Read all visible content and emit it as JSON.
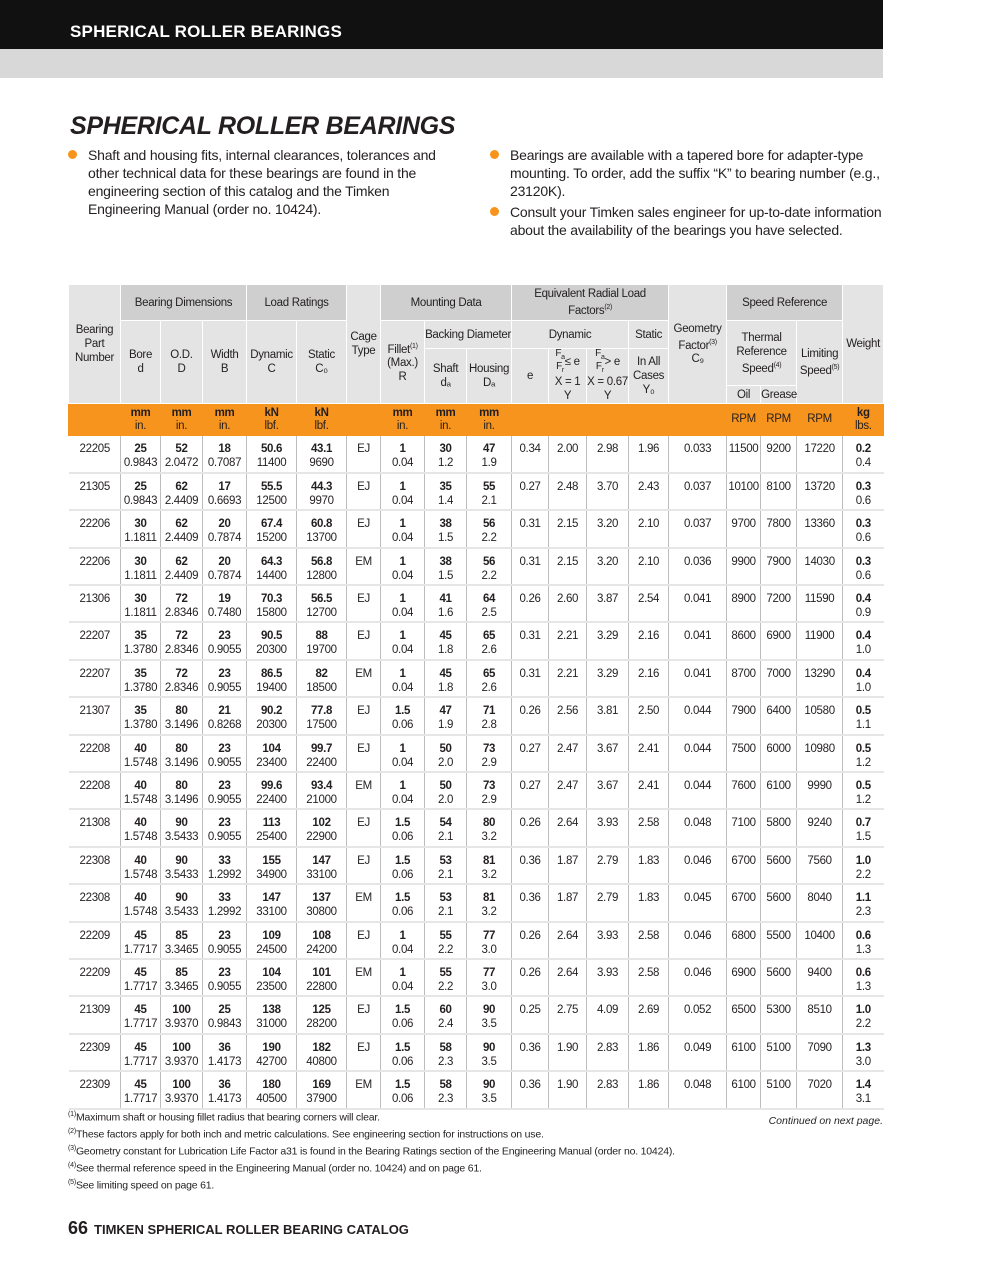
{
  "header": {
    "section": "SPHERICAL ROLLER BEARINGS"
  },
  "title": "SPHERICAL ROLLER BEARINGS",
  "bullets_left": [
    "Shaft and housing fits, internal clearances, tolerances and other technical data for these bearings are found in the engineering section of this catalog and the Timken Engineering Manual (order no. 10424)."
  ],
  "bullets_right": [
    "Bearings are available with a tapered bore for adapter-type mounting. To order, add the suffix “K” to bearing number (e.g., 23120K).",
    "Consult your Timken sales engineer for up-to-date information about the availability of the bearings you have selected."
  ],
  "accent_color": "#f7941d",
  "table": {
    "groups": {
      "dims": "Bearing Dimensions",
      "load": "Load Ratings",
      "mount": "Mounting Data",
      "eq": "Equivalent Radial Load Factors",
      "speed": "Speed Reference"
    },
    "cols": {
      "part": "Bearing Part Number",
      "bore": "Bore",
      "bore_sym": "d",
      "od": "O.D.",
      "od_sym": "D",
      "width": "Width",
      "width_sym": "B",
      "dyn": "Dynamic",
      "dyn_sym": "C",
      "stat": "Static",
      "stat_sym": "C₀",
      "cage": "Cage Type",
      "fillet": "Fillet",
      "fillet_sub": "(Max.)",
      "fillet_sym": "R",
      "backing": "Backing Diameter",
      "shaft": "Shaft",
      "shaft_sym": "dₐ",
      "housing": "Housing",
      "housing_sym": "Dₐ",
      "dynamic": "Dynamic",
      "static": "Static",
      "e": "e",
      "y1": "≤ e",
      "y1_x": "X = 1",
      "y1_y": "Y",
      "y2": "> e",
      "y2_x": "X = 0.67",
      "y2_y": "Y",
      "y0": "In All Cases",
      "y0_sym": "Y₀",
      "geom": "Geometry Factor",
      "geom_sym": "C₉",
      "thermal": "Thermal Reference Speed",
      "oil": "Oil",
      "grease": "Grease",
      "limit": "Limiting Speed",
      "weight": "Weight"
    },
    "units": {
      "mm": "mm",
      "in": "in.",
      "kn": "kN",
      "lbf": "lbf.",
      "rpm": "RPM",
      "kg": "kg",
      "lbs": "lbs."
    },
    "rows": [
      [
        "22205",
        "25",
        "0.9843",
        "52",
        "2.0472",
        "18",
        "0.7087",
        "50.6",
        "11400",
        "43.1",
        "9690",
        "EJ",
        "1",
        "0.04",
        "30",
        "1.2",
        "47",
        "1.9",
        "0.34",
        "2.00",
        "2.98",
        "1.96",
        "0.033",
        "11500",
        "9200",
        "17220",
        "0.2",
        "0.4"
      ],
      [
        "21305",
        "25",
        "0.9843",
        "62",
        "2.4409",
        "17",
        "0.6693",
        "55.5",
        "12500",
        "44.3",
        "9970",
        "EJ",
        "1",
        "0.04",
        "35",
        "1.4",
        "55",
        "2.1",
        "0.27",
        "2.48",
        "3.70",
        "2.43",
        "0.037",
        "10100",
        "8100",
        "13720",
        "0.3",
        "0.6"
      ],
      [
        "22206",
        "30",
        "1.1811",
        "62",
        "2.4409",
        "20",
        "0.7874",
        "67.4",
        "15200",
        "60.8",
        "13700",
        "EJ",
        "1",
        "0.04",
        "38",
        "1.5",
        "56",
        "2.2",
        "0.31",
        "2.15",
        "3.20",
        "2.10",
        "0.037",
        "9700",
        "7800",
        "13360",
        "0.3",
        "0.6"
      ],
      [
        "22206",
        "30",
        "1.1811",
        "62",
        "2.4409",
        "20",
        "0.7874",
        "64.3",
        "14400",
        "56.8",
        "12800",
        "EM",
        "1",
        "0.04",
        "38",
        "1.5",
        "56",
        "2.2",
        "0.31",
        "2.15",
        "3.20",
        "2.10",
        "0.036",
        "9900",
        "7900",
        "14030",
        "0.3",
        "0.6"
      ],
      [
        "21306",
        "30",
        "1.1811",
        "72",
        "2.8346",
        "19",
        "0.7480",
        "70.3",
        "15800",
        "56.5",
        "12700",
        "EJ",
        "1",
        "0.04",
        "41",
        "1.6",
        "64",
        "2.5",
        "0.26",
        "2.60",
        "3.87",
        "2.54",
        "0.041",
        "8900",
        "7200",
        "11590",
        "0.4",
        "0.9"
      ],
      [
        "22207",
        "35",
        "1.3780",
        "72",
        "2.8346",
        "23",
        "0.9055",
        "90.5",
        "20300",
        "88",
        "19700",
        "EJ",
        "1",
        "0.04",
        "45",
        "1.8",
        "65",
        "2.6",
        "0.31",
        "2.21",
        "3.29",
        "2.16",
        "0.041",
        "8600",
        "6900",
        "11900",
        "0.4",
        "1.0"
      ],
      [
        "22207",
        "35",
        "1.3780",
        "72",
        "2.8346",
        "23",
        "0.9055",
        "86.5",
        "19400",
        "82",
        "18500",
        "EM",
        "1",
        "0.04",
        "45",
        "1.8",
        "65",
        "2.6",
        "0.31",
        "2.21",
        "3.29",
        "2.16",
        "0.041",
        "8700",
        "7000",
        "13290",
        "0.4",
        "1.0"
      ],
      [
        "21307",
        "35",
        "1.3780",
        "80",
        "3.1496",
        "21",
        "0.8268",
        "90.2",
        "20300",
        "77.8",
        "17500",
        "EJ",
        "1.5",
        "0.06",
        "47",
        "1.9",
        "71",
        "2.8",
        "0.26",
        "2.56",
        "3.81",
        "2.50",
        "0.044",
        "7900",
        "6400",
        "10580",
        "0.5",
        "1.1"
      ],
      [
        "22208",
        "40",
        "1.5748",
        "80",
        "3.1496",
        "23",
        "0.9055",
        "104",
        "23400",
        "99.7",
        "22400",
        "EJ",
        "1",
        "0.04",
        "50",
        "2.0",
        "73",
        "2.9",
        "0.27",
        "2.47",
        "3.67",
        "2.41",
        "0.044",
        "7500",
        "6000",
        "10980",
        "0.5",
        "1.2"
      ],
      [
        "22208",
        "40",
        "1.5748",
        "80",
        "3.1496",
        "23",
        "0.9055",
        "99.6",
        "22400",
        "93.4",
        "21000",
        "EM",
        "1",
        "0.04",
        "50",
        "2.0",
        "73",
        "2.9",
        "0.27",
        "2.47",
        "3.67",
        "2.41",
        "0.044",
        "7600",
        "6100",
        "9990",
        "0.5",
        "1.2"
      ],
      [
        "21308",
        "40",
        "1.5748",
        "90",
        "3.5433",
        "23",
        "0.9055",
        "113",
        "25400",
        "102",
        "22900",
        "EJ",
        "1.5",
        "0.06",
        "54",
        "2.1",
        "80",
        "3.2",
        "0.26",
        "2.64",
        "3.93",
        "2.58",
        "0.048",
        "7100",
        "5800",
        "9240",
        "0.7",
        "1.5"
      ],
      [
        "22308",
        "40",
        "1.5748",
        "90",
        "3.5433",
        "33",
        "1.2992",
        "155",
        "34900",
        "147",
        "33100",
        "EJ",
        "1.5",
        "0.06",
        "53",
        "2.1",
        "81",
        "3.2",
        "0.36",
        "1.87",
        "2.79",
        "1.83",
        "0.046",
        "6700",
        "5600",
        "7560",
        "1.0",
        "2.2"
      ],
      [
        "22308",
        "40",
        "1.5748",
        "90",
        "3.5433",
        "33",
        "1.2992",
        "147",
        "33100",
        "137",
        "30800",
        "EM",
        "1.5",
        "0.06",
        "53",
        "2.1",
        "81",
        "3.2",
        "0.36",
        "1.87",
        "2.79",
        "1.83",
        "0.045",
        "6700",
        "5600",
        "8040",
        "1.1",
        "2.3"
      ],
      [
        "22209",
        "45",
        "1.7717",
        "85",
        "3.3465",
        "23",
        "0.9055",
        "109",
        "24500",
        "108",
        "24200",
        "EJ",
        "1",
        "0.04",
        "55",
        "2.2",
        "77",
        "3.0",
        "0.26",
        "2.64",
        "3.93",
        "2.58",
        "0.046",
        "6800",
        "5500",
        "10400",
        "0.6",
        "1.3"
      ],
      [
        "22209",
        "45",
        "1.7717",
        "85",
        "3.3465",
        "23",
        "0.9055",
        "104",
        "23500",
        "101",
        "22800",
        "EM",
        "1",
        "0.04",
        "55",
        "2.2",
        "77",
        "3.0",
        "0.26",
        "2.64",
        "3.93",
        "2.58",
        "0.046",
        "6900",
        "5600",
        "9400",
        "0.6",
        "1.3"
      ],
      [
        "21309",
        "45",
        "1.7717",
        "100",
        "3.9370",
        "25",
        "0.9843",
        "138",
        "31000",
        "125",
        "28200",
        "EJ",
        "1.5",
        "0.06",
        "60",
        "2.4",
        "90",
        "3.5",
        "0.25",
        "2.75",
        "4.09",
        "2.69",
        "0.052",
        "6500",
        "5300",
        "8510",
        "1.0",
        "2.2"
      ],
      [
        "22309",
        "45",
        "1.7717",
        "100",
        "3.9370",
        "36",
        "1.4173",
        "190",
        "42700",
        "182",
        "40800",
        "EJ",
        "1.5",
        "0.06",
        "58",
        "2.3",
        "90",
        "3.5",
        "0.36",
        "1.90",
        "2.83",
        "1.86",
        "0.049",
        "6100",
        "5100",
        "7090",
        "1.3",
        "3.0"
      ],
      [
        "22309",
        "45",
        "1.7717",
        "100",
        "3.9370",
        "36",
        "1.4173",
        "180",
        "40500",
        "169",
        "37900",
        "EM",
        "1.5",
        "0.06",
        "58",
        "2.3",
        "90",
        "3.5",
        "0.36",
        "1.90",
        "2.83",
        "1.86",
        "0.048",
        "6100",
        "5100",
        "7020",
        "1.4",
        "3.1"
      ]
    ]
  },
  "footnotes": [
    "Maximum shaft or housing fillet radius that bearing corners will clear.",
    "These factors apply for both inch and metric calculations. See engineering section for instructions on use.",
    "Geometry constant for Lubrication Life Factor a31 is found in the Bearing Ratings section of the Engineering Manual (order no. 10424).",
    "See thermal reference speed in the Engineering Manual (order no. 10424) and on page 61.",
    "See limiting speed on page 61."
  ],
  "continued": "Continued on next page.",
  "footer": {
    "page": "66",
    "catalog": "TIMKEN SPHERICAL ROLLER BEARING CATALOG"
  }
}
